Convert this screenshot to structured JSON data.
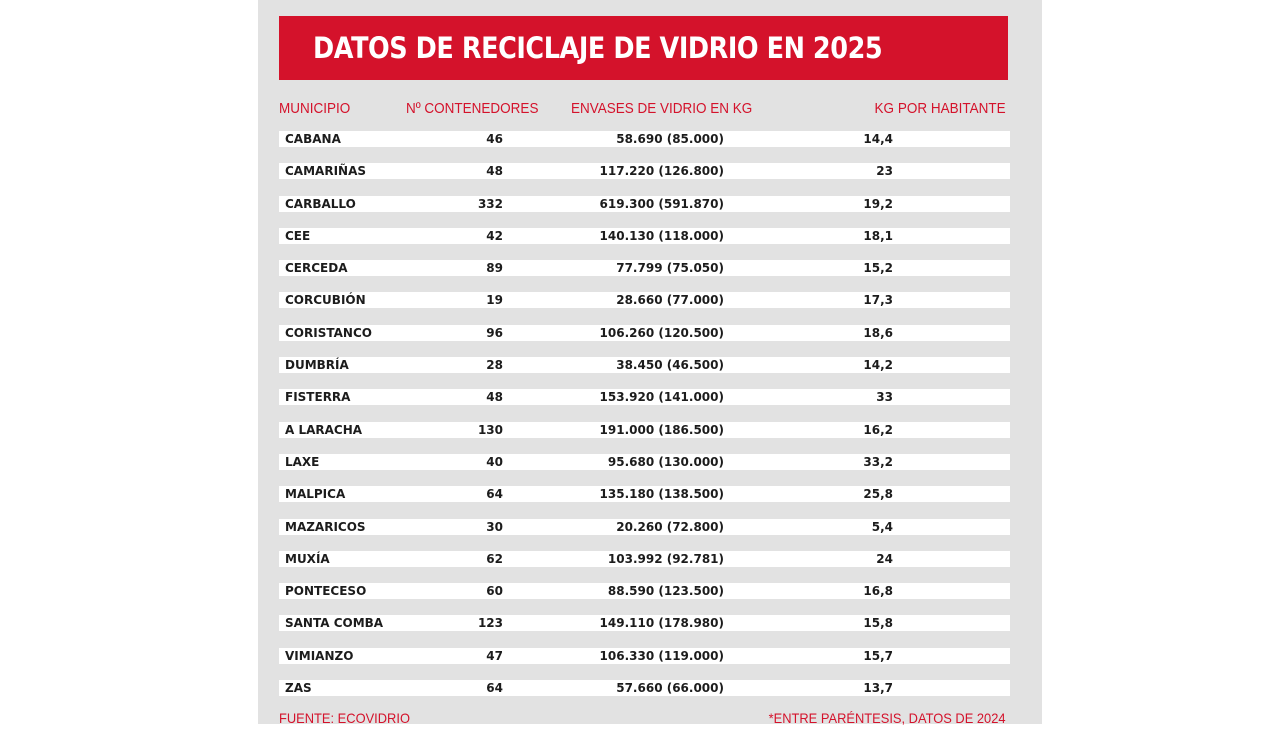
{
  "title": "DATOS DE RECICLAJE DE VIDRIO EN 2025",
  "headers": {
    "municipio": "MUNICIPIO",
    "contenedores": "Nº CONTENEDORES",
    "envases": "ENVASES DE VIDRIO EN KG",
    "kg_habitante": "KG POR HABITANTE"
  },
  "rows": [
    {
      "municipio": "CABANA",
      "contenedores": "46",
      "envases": "58.690 (85.000)",
      "kg_habitante": "14,4"
    },
    {
      "municipio": "CAMARIÑAS",
      "contenedores": "48",
      "envases": "117.220 (126.800)",
      "kg_habitante": "23"
    },
    {
      "municipio": "CARBALLO",
      "contenedores": "332",
      "envases": "619.300 (591.870)",
      "kg_habitante": "19,2"
    },
    {
      "municipio": "CEE",
      "contenedores": "42",
      "envases": "140.130 (118.000)",
      "kg_habitante": "18,1"
    },
    {
      "municipio": "CERCEDA",
      "contenedores": "89",
      "envases": "77.799 (75.050)",
      "kg_habitante": "15,2"
    },
    {
      "municipio": "CORCUBIÓN",
      "contenedores": "19",
      "envases": "28.660 (77.000)",
      "kg_habitante": "17,3"
    },
    {
      "municipio": "CORISTANCO",
      "contenedores": "96",
      "envases": "106.260 (120.500)",
      "kg_habitante": "18,6"
    },
    {
      "municipio": "DUMBRÍA",
      "contenedores": "28",
      "envases": "38.450 (46.500)",
      "kg_habitante": "14,2"
    },
    {
      "municipio": "FISTERRA",
      "contenedores": "48",
      "envases": "153.920 (141.000)",
      "kg_habitante": "33"
    },
    {
      "municipio": "A LARACHA",
      "contenedores": "130",
      "envases": "191.000 (186.500)",
      "kg_habitante": "16,2"
    },
    {
      "municipio": "LAXE",
      "contenedores": "40",
      "envases": "95.680 (130.000)",
      "kg_habitante": "33,2"
    },
    {
      "municipio": "MALPICA",
      "contenedores": "64",
      "envases": "135.180 (138.500)",
      "kg_habitante": "25,8"
    },
    {
      "municipio": "MAZARICOS",
      "contenedores": "30",
      "envases": "20.260 (72.800)",
      "kg_habitante": "5,4"
    },
    {
      "municipio": "MUXÍA",
      "contenedores": "62",
      "envases": "103.992 (92.781)",
      "kg_habitante": "24"
    },
    {
      "municipio": "PONTECESO",
      "contenedores": "60",
      "envases": "88.590 (123.500)",
      "kg_habitante": "16,8"
    },
    {
      "municipio": "SANTA COMBA",
      "contenedores": "123",
      "envases": "149.110 (178.980)",
      "kg_habitante": "15,8"
    },
    {
      "municipio": "VIMIANZO",
      "contenedores": "47",
      "envases": "106.330 (119.000)",
      "kg_habitante": "15,7"
    },
    {
      "municipio": "ZAS",
      "contenedores": "64",
      "envases": "57.660 (66.000)",
      "kg_habitante": "13,7"
    }
  ],
  "footer": {
    "source": "FUENTE: ECOVIDRIO",
    "note": "*ENTRE PARÉNTESIS, DATOS DE 2024"
  },
  "colors": {
    "accent": "#d4122b",
    "panel_background": "#e2e2e2",
    "row_background": "#ffffff",
    "text": "#1c1c1c"
  }
}
